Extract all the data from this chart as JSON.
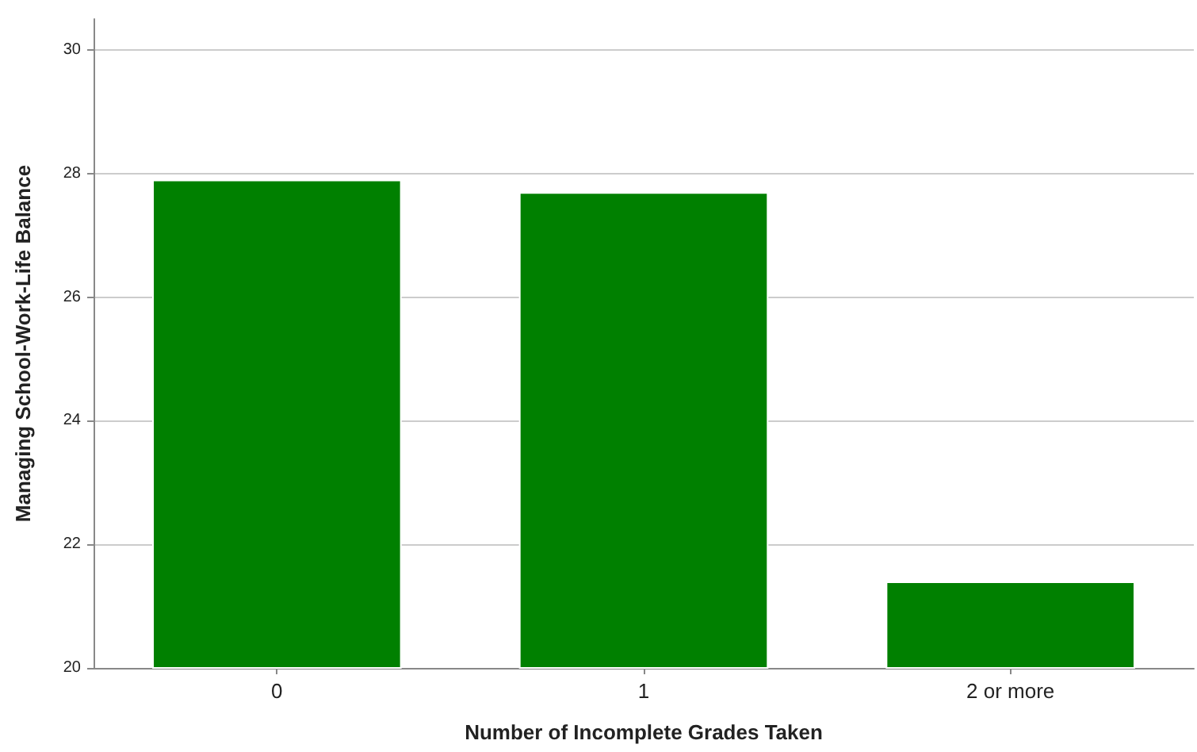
{
  "chart_data": {
    "type": "bar",
    "xlabel": "Number of Incomplete Grades Taken",
    "ylabel": "Managing School-Work-Life Balance",
    "categories": [
      "0",
      "1",
      "2 or more"
    ],
    "values": [
      27.9,
      27.7,
      21.4
    ],
    "color": "#008000",
    "ylim": [
      20,
      30.5
    ],
    "yticks": [
      20,
      22,
      24,
      26,
      28,
      30
    ],
    "grid": "y"
  }
}
